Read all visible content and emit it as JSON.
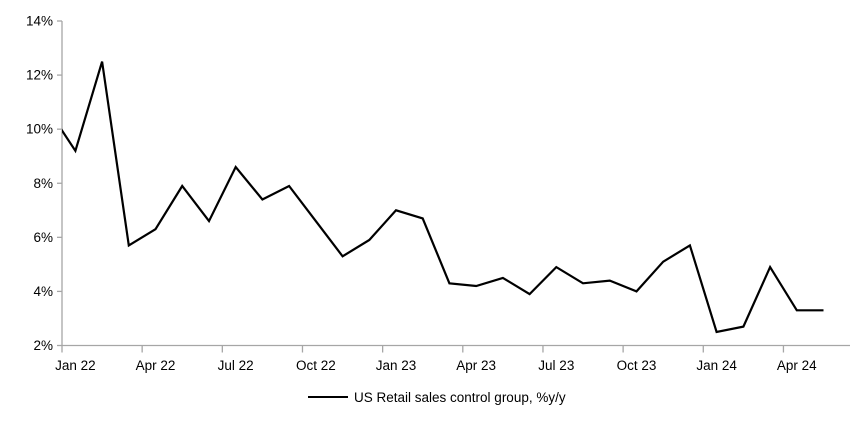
{
  "chart_data": {
    "type": "line",
    "title": "",
    "legend_position": "bottom-center",
    "background": "#ffffff",
    "axis_color": "#a6a6a6",
    "text_color": "#000000",
    "line_color": "#000000",
    "grid": false,
    "ylim": [
      2,
      14
    ],
    "y_tick_step": 2,
    "y_tick_labels": [
      "2%",
      "4%",
      "6%",
      "8%",
      "10%",
      "12%",
      "14%"
    ],
    "x_tick_labels": [
      "Jan 22",
      "Apr 22",
      "Jul 22",
      "Oct 22",
      "Jan 23",
      "Apr 23",
      "Jul 23",
      "Oct 23",
      "Jan 24",
      "Apr 24"
    ],
    "x_label_interval_months": 3,
    "first_point_clipped_at_y_axis": true,
    "x": [
      "Dec 21",
      "Jan 22",
      "Feb 22",
      "Mar 22",
      "Apr 22",
      "May 22",
      "Jun 22",
      "Jul 22",
      "Aug 22",
      "Sep 22",
      "Oct 22",
      "Nov 22",
      "Dec 22",
      "Jan 23",
      "Feb 23",
      "Mar 23",
      "Apr 23",
      "May 23",
      "Jun 23",
      "Jul 23",
      "Aug 23",
      "Sep 23",
      "Oct 23",
      "Nov 23",
      "Dec 23",
      "Jan 24",
      "Feb 24",
      "Mar 24",
      "Apr 24",
      "May 24"
    ],
    "series": [
      {
        "name": "US Retail sales control group, %y/y",
        "color": "#000000",
        "values": [
          10.7,
          9.2,
          12.5,
          5.7,
          6.3,
          7.9,
          6.6,
          8.6,
          7.4,
          7.9,
          6.6,
          5.3,
          5.9,
          7.0,
          6.7,
          4.3,
          4.2,
          4.5,
          3.9,
          4.9,
          4.3,
          4.4,
          4.0,
          5.1,
          5.7,
          2.5,
          2.7,
          4.9,
          3.3,
          3.3
        ]
      }
    ]
  }
}
